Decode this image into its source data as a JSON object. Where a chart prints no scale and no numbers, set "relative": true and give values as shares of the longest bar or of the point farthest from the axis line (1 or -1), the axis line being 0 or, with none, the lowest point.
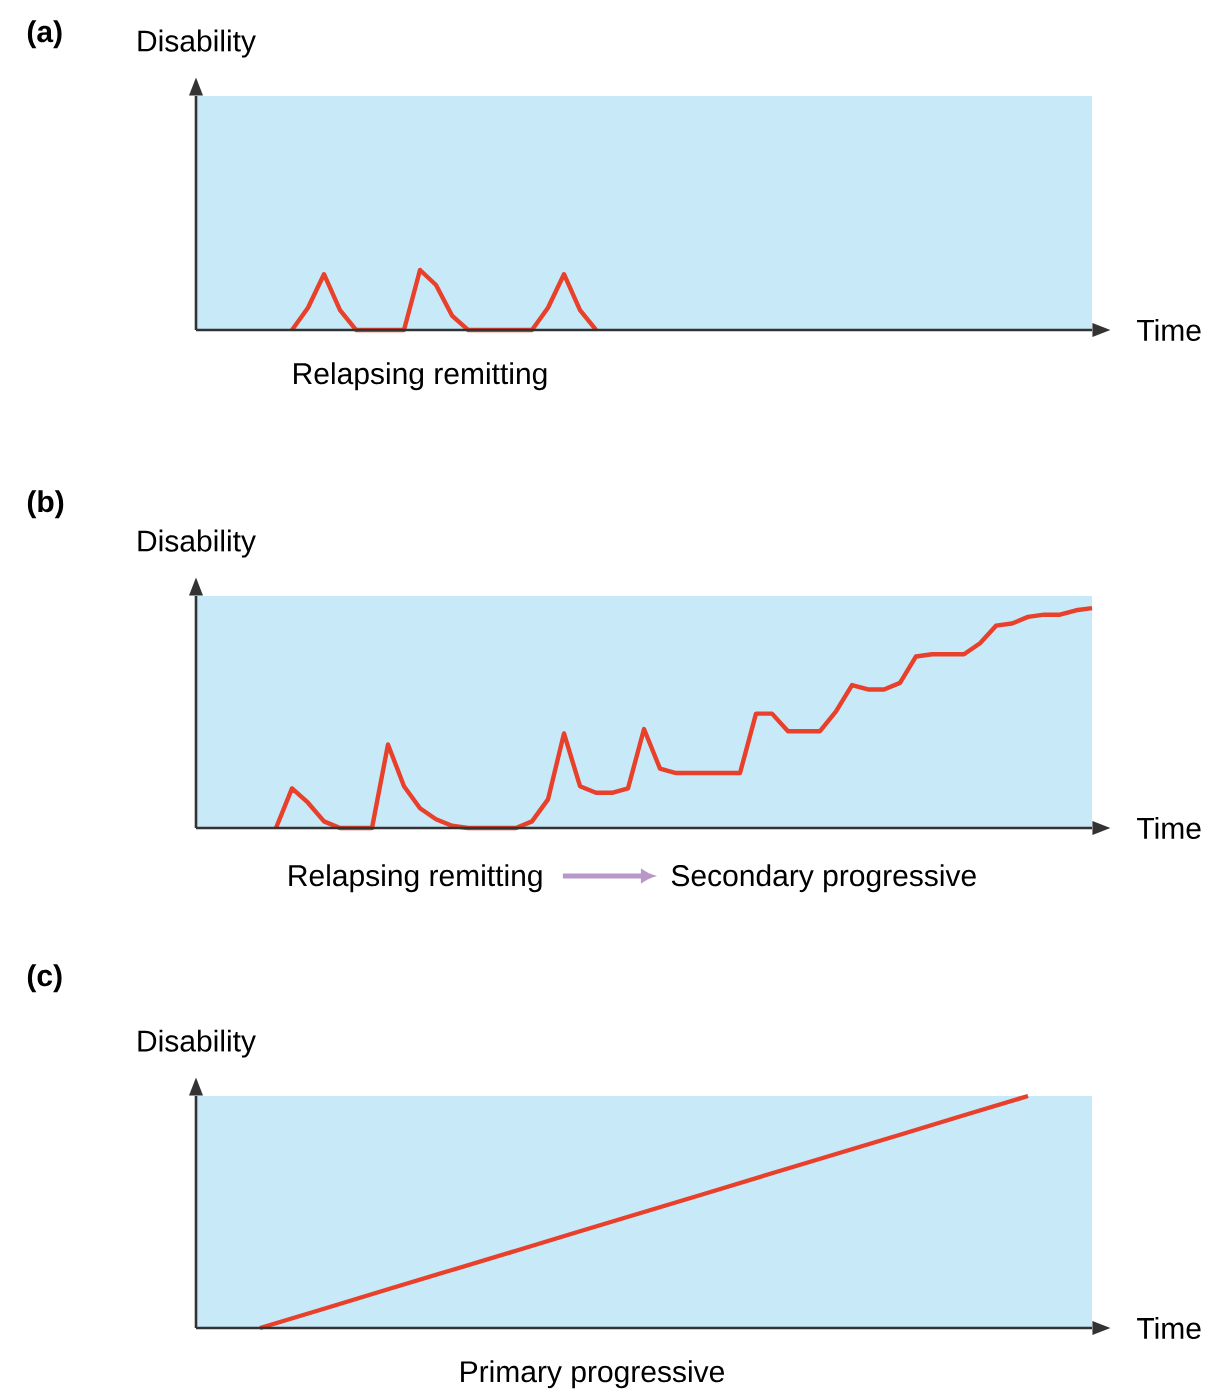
{
  "chart_data": [
    {
      "type": "line",
      "title": "(a)",
      "xlabel": "Time",
      "ylabel": "Disability",
      "relative": true,
      "annotations": [
        "Relapsing remitting"
      ],
      "categories": [
        null,
        null,
        null,
        null,
        null,
        null,
        null,
        null,
        null,
        null,
        null,
        null,
        null,
        null,
        null,
        null,
        null,
        null,
        null,
        null,
        null,
        null,
        null,
        null,
        null,
        null,
        null,
        null,
        null,
        null,
        null,
        null,
        null,
        null,
        null,
        null,
        null,
        null,
        null,
        null,
        null,
        null,
        null,
        null,
        null,
        null,
        null,
        null,
        null,
        null,
        null,
        null,
        null,
        null,
        null,
        null,
        null
      ],
      "series": [
        {
          "color": "#e8402a",
          "values": [
            null,
            null,
            null,
            null,
            null,
            null,
            0,
            0.37,
            0.93,
            0.33,
            0,
            0,
            0,
            0,
            1,
            0.75,
            0.24,
            0,
            0,
            0,
            0,
            0,
            0.37,
            0.93,
            0.33,
            0,
            null,
            null,
            null,
            null,
            null,
            null,
            null,
            null,
            null,
            null,
            null,
            null,
            null,
            null,
            null,
            null,
            null,
            null,
            null,
            null,
            null,
            null,
            null,
            null,
            null,
            null,
            null,
            null,
            null,
            null,
            null
          ]
        }
      ]
    },
    {
      "type": "line",
      "title": "(b)",
      "xlabel": "Time",
      "ylabel": "Disability",
      "relative": true,
      "annotations": [
        "Relapsing remitting",
        "Secondary progressive"
      ],
      "categories": [
        null,
        null,
        null,
        null,
        null,
        null,
        null,
        null,
        null,
        null,
        null,
        null,
        null,
        null,
        null,
        null,
        null,
        null,
        null,
        null,
        null,
        null,
        null,
        null,
        null,
        null,
        null,
        null,
        null,
        null,
        null,
        null,
        null,
        null,
        null,
        null,
        null,
        null,
        null,
        null,
        null,
        null,
        null,
        null,
        null,
        null,
        null,
        null,
        null,
        null,
        null,
        null,
        null,
        null,
        null,
        null,
        null
      ],
      "series": [
        {
          "color": "#e8402a",
          "values": [
            null,
            null,
            null,
            null,
            null,
            0,
            0.18,
            0.115,
            0.03,
            0,
            0,
            0,
            0.38,
            0.19,
            0.09,
            0.04,
            0.01,
            0,
            0,
            0,
            0,
            0.03,
            0.13,
            0.43,
            0.19,
            0.16,
            0.16,
            0.18,
            0.45,
            0.27,
            0.25,
            0.25,
            0.25,
            0.25,
            0.25,
            0.52,
            0.52,
            0.44,
            0.44,
            0.44,
            0.53,
            0.65,
            0.63,
            0.63,
            0.66,
            0.78,
            0.79,
            0.79,
            0.79,
            0.84,
            0.92,
            0.93,
            0.96,
            0.97,
            0.97,
            0.99,
            1
          ]
        }
      ]
    },
    {
      "type": "line",
      "title": "(c)",
      "xlabel": "Time",
      "ylabel": "Disability",
      "relative": true,
      "annotations": [
        "Primary progressive"
      ],
      "categories": [
        null,
        null,
        null,
        null,
        null,
        null,
        null,
        null,
        null,
        null,
        null,
        null,
        null,
        null,
        null
      ],
      "series": [
        {
          "color": "#e8402a",
          "values": [
            null,
            0,
            0.083,
            0.167,
            0.25,
            0.333,
            0.417,
            0.5,
            0.583,
            0.667,
            0.75,
            0.833,
            0.917,
            1,
            null
          ]
        }
      ]
    }
  ]
}
